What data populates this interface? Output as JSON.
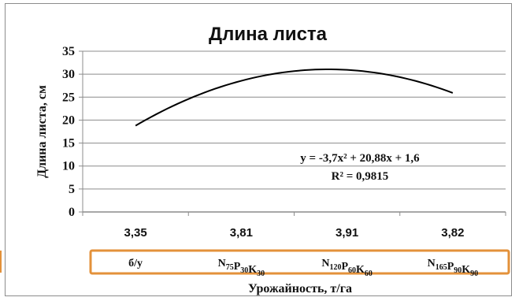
{
  "chart_data": {
    "type": "line",
    "title": "Длина листа",
    "ylabel": "Длина листа, см",
    "xlabel": "Урожайность, т/га",
    "categories": [
      "3,35",
      "3,81",
      "3,91",
      "3,82"
    ],
    "groups": [
      {
        "label": "б/у"
      },
      {
        "label": "N75P30K30",
        "parts": [
          [
            "N",
            "75"
          ],
          [
            "P",
            "30"
          ],
          [
            "K",
            "30"
          ]
        ]
      },
      {
        "label": "N120P60K60",
        "parts": [
          [
            "N",
            "120"
          ],
          [
            "P",
            "60"
          ],
          [
            "K",
            "60"
          ]
        ]
      },
      {
        "label": "N165P90K90",
        "parts": [
          [
            "N",
            "165"
          ],
          [
            "P",
            "90"
          ],
          [
            "K",
            "90"
          ]
        ]
      }
    ],
    "yticks": [
      "0",
      "5",
      "10",
      "15",
      "20",
      "25",
      "30",
      "35"
    ],
    "ylim": [
      0,
      35
    ],
    "trendline": {
      "equation": "y = -3,7x² + 20,88x + 1,6",
      "r2": "R² = 0,9815",
      "coefficients": {
        "a": -3.7,
        "b": 20.88,
        "c": 1.6
      },
      "x_range": [
        1,
        4
      ]
    },
    "grid": true,
    "line_color": "#000000",
    "grid_color": "#8c8c8c",
    "highlight_box_color": "#e3913a"
  }
}
